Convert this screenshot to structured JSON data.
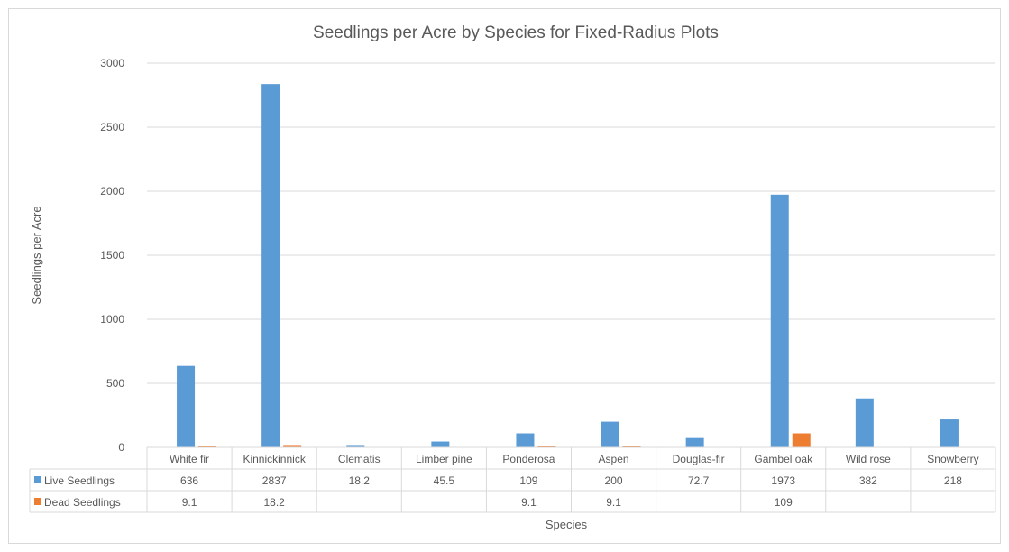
{
  "chart_data": {
    "type": "bar",
    "title": "Seedlings per Acre by Species for Fixed-Radius Plots",
    "xlabel": "Species",
    "ylabel": "Seedlings per Acre",
    "ylim": [
      0,
      3000
    ],
    "yticks": [
      0,
      500,
      1000,
      1500,
      2000,
      2500,
      3000
    ],
    "grid": true,
    "legend": "data-table",
    "categories": [
      "White fir",
      "Kinnickinnick",
      "Clematis",
      "Limber pine",
      "Ponderosa",
      "Aspen",
      "Douglas-fir",
      "Gambel oak",
      "Wild rose",
      "Snowberry"
    ],
    "series": [
      {
        "name": "Live Seedlings",
        "color": "#5b9bd5",
        "values": [
          636,
          2837,
          18.2,
          45.5,
          109,
          200,
          72.7,
          1973,
          382,
          218
        ]
      },
      {
        "name": "Dead Seedlings",
        "color": "#ed7d31",
        "values": [
          9.1,
          18.2,
          null,
          null,
          9.1,
          9.1,
          null,
          109,
          null,
          null
        ]
      }
    ]
  }
}
